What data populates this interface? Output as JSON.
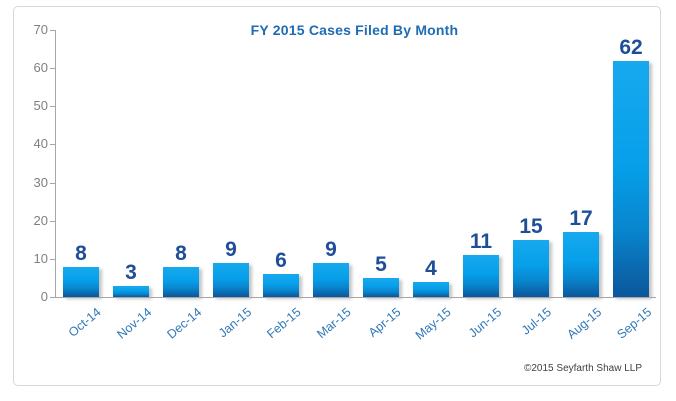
{
  "chart_data": {
    "type": "bar",
    "title": "FY 2015 Cases Filed By Month",
    "categories": [
      "Oct-14",
      "Nov-14",
      "Dec-14",
      "Jan-15",
      "Feb-15",
      "Mar-15",
      "Apr-15",
      "May-15",
      "Jun-15",
      "Jul-15",
      "Aug-15",
      "Sep-15"
    ],
    "values": [
      8,
      3,
      8,
      9,
      6,
      9,
      5,
      4,
      11,
      15,
      17,
      62
    ],
    "xlabel": "",
    "ylabel": "",
    "ylim": [
      0,
      70
    ],
    "ytick_step": 10,
    "yticks": [
      0,
      10,
      20,
      30,
      40,
      50,
      60,
      70
    ],
    "grid": false,
    "legend": "none",
    "annotation": "©2015 Seyfarth Shaw LLP",
    "colors": {
      "bar_top": "#17a9ee",
      "bar_main": "#069fe9",
      "bar_bottom": "#0a579c",
      "data_label": "#1f4e99",
      "title": "#1f6cb4",
      "x_tick_label": "#2e77b8",
      "y_tick_label": "#7f7f7f",
      "axis_line": "#a6a6a6",
      "panel_border": "#d7d7d7"
    }
  }
}
